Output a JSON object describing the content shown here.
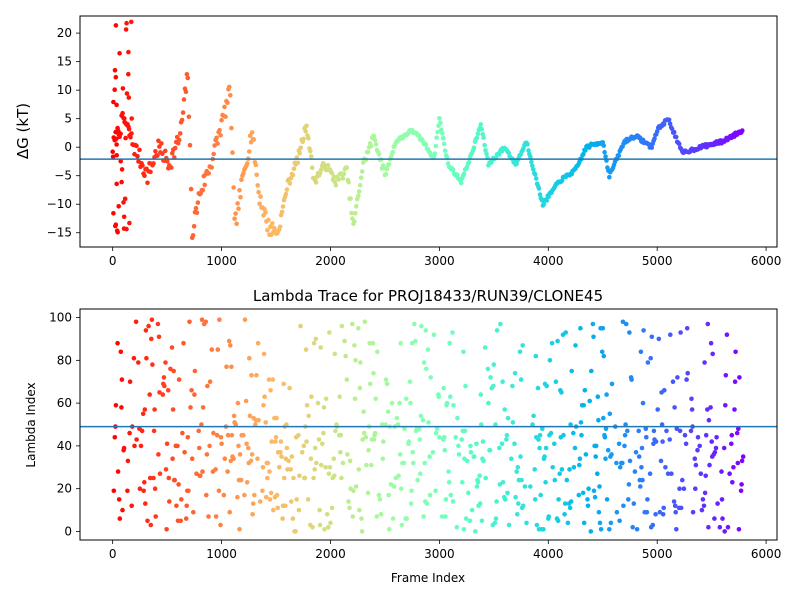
{
  "chart_data": [
    {
      "type": "scatter",
      "title": "",
      "xlabel": "",
      "ylabel": "ΔG (kT)",
      "xlim": [
        -300,
        6100
      ],
      "ylim": [
        -17.5,
        23
      ],
      "xticks": [
        0,
        1000,
        2000,
        3000,
        4000,
        5000,
        6000
      ],
      "yticks": [
        -15,
        -10,
        -5,
        0,
        5,
        10,
        15,
        20
      ],
      "grid": false,
      "colormap": "rainbow (reversed: red at frame 0, violet at last frame)",
      "hline": -2.1,
      "hline_color": "#1f77b4",
      "n_frames": 5800,
      "x_range": [
        0,
        5790
      ],
      "trace_summary": [
        {
          "x": 0,
          "y": 0
        },
        {
          "x": 100,
          "y": 5
        },
        {
          "x": 200,
          "y": 0
        },
        {
          "x": 320,
          "y": -5
        },
        {
          "x": 420,
          "y": 0
        },
        {
          "x": 520,
          "y": -3
        },
        {
          "x": 620,
          "y": 2
        },
        {
          "x": 690,
          "y": 13
        },
        {
          "x": 730,
          "y": -15
        },
        {
          "x": 800,
          "y": -8
        },
        {
          "x": 900,
          "y": -3
        },
        {
          "x": 1000,
          "y": 4
        },
        {
          "x": 1080,
          "y": 10
        },
        {
          "x": 1120,
          "y": -14
        },
        {
          "x": 1200,
          "y": -5
        },
        {
          "x": 1280,
          "y": 3
        },
        {
          "x": 1340,
          "y": -8
        },
        {
          "x": 1430,
          "y": -14
        },
        {
          "x": 1520,
          "y": -15
        },
        {
          "x": 1600,
          "y": -7
        },
        {
          "x": 1700,
          "y": -2
        },
        {
          "x": 1780,
          "y": 4
        },
        {
          "x": 1850,
          "y": -6
        },
        {
          "x": 1950,
          "y": -3
        },
        {
          "x": 2050,
          "y": -6
        },
        {
          "x": 2150,
          "y": -4
        },
        {
          "x": 2210,
          "y": -14
        },
        {
          "x": 2300,
          "y": -3
        },
        {
          "x": 2400,
          "y": 2
        },
        {
          "x": 2500,
          "y": -5
        },
        {
          "x": 2600,
          "y": 1
        },
        {
          "x": 2750,
          "y": 3
        },
        {
          "x": 2850,
          "y": 1
        },
        {
          "x": 2950,
          "y": -2
        },
        {
          "x": 3000,
          "y": 5
        },
        {
          "x": 3080,
          "y": -3
        },
        {
          "x": 3200,
          "y": -6
        },
        {
          "x": 3300,
          "y": -1
        },
        {
          "x": 3380,
          "y": 4
        },
        {
          "x": 3450,
          "y": -3
        },
        {
          "x": 3600,
          "y": 0
        },
        {
          "x": 3700,
          "y": -3
        },
        {
          "x": 3800,
          "y": 1
        },
        {
          "x": 3880,
          "y": -5
        },
        {
          "x": 3950,
          "y": -10
        },
        {
          "x": 4100,
          "y": -6
        },
        {
          "x": 4250,
          "y": -4
        },
        {
          "x": 4350,
          "y": 0
        },
        {
          "x": 4500,
          "y": 1
        },
        {
          "x": 4560,
          "y": -5
        },
        {
          "x": 4700,
          "y": 1
        },
        {
          "x": 4800,
          "y": 2
        },
        {
          "x": 4950,
          "y": 0
        },
        {
          "x": 5000,
          "y": 3
        },
        {
          "x": 5100,
          "y": 5
        },
        {
          "x": 5230,
          "y": -1
        },
        {
          "x": 5400,
          "y": 0
        },
        {
          "x": 5600,
          "y": 1
        },
        {
          "x": 5790,
          "y": 3
        }
      ]
    },
    {
      "type": "scatter",
      "title": "Lambda Trace for PROJ18433/RUN39/CLONE45",
      "xlabel": "Frame Index",
      "ylabel": "Lambda Index",
      "xlim": [
        -300,
        6100
      ],
      "ylim": [
        -4,
        104
      ],
      "xticks": [
        0,
        1000,
        2000,
        3000,
        4000,
        5000,
        6000
      ],
      "yticks": [
        0,
        20,
        40,
        60,
        80,
        100
      ],
      "grid": false,
      "colormap": "rainbow (reversed: red at frame 0, violet at last frame)",
      "hline": 49,
      "hline_color": "#1f77b4",
      "n_frames": 5800,
      "x_range": [
        0,
        5790
      ],
      "y_range": [
        0,
        99
      ],
      "distribution": "points spread over lambda 0–99 in vertical bursts, denser in the lower half toward the end of the trace"
    }
  ]
}
